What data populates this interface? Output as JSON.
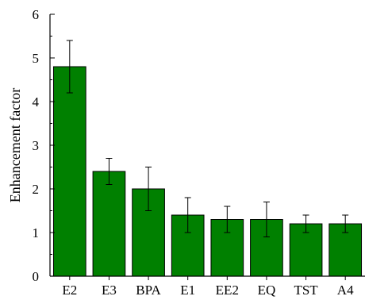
{
  "chart_data": {
    "type": "bar",
    "title": "",
    "xlabel": "",
    "ylabel": "Enhancement factor",
    "ylim": [
      0,
      6
    ],
    "yticks": [
      "0",
      "1",
      "2",
      "3",
      "4",
      "5",
      "6"
    ],
    "categories": [
      "E2",
      "E3",
      "BPA",
      "E1",
      "EE2",
      "EQ",
      "TST",
      "A4"
    ],
    "values": [
      4.8,
      2.4,
      2.0,
      1.4,
      1.3,
      1.3,
      1.2,
      1.2
    ],
    "errors": [
      0.6,
      0.3,
      0.5,
      0.4,
      0.3,
      0.4,
      0.2,
      0.2
    ],
    "bar_color": "#008000",
    "grid": false,
    "legend": "none"
  }
}
